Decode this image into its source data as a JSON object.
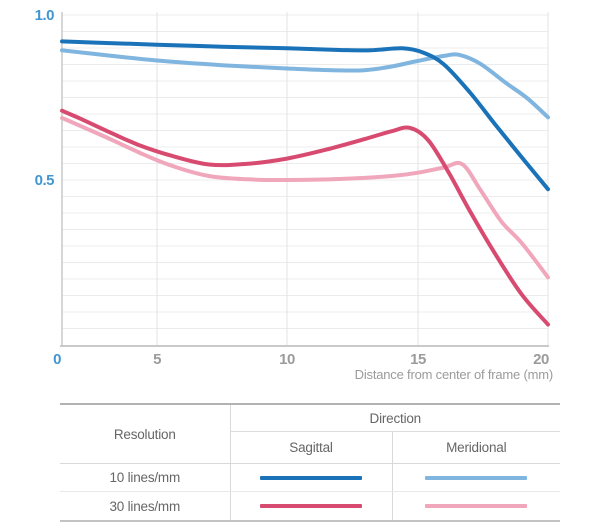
{
  "chart": {
    "y_tick_labels": [
      {
        "label": "1.0",
        "value": 1.0
      },
      {
        "label": "0.5",
        "value": 0.5
      }
    ],
    "origin_label": "0",
    "x_tick_labels": [
      {
        "label": "5",
        "value": 5
      },
      {
        "label": "10",
        "value": 10
      },
      {
        "label": "15",
        "value": 15
      },
      {
        "label": "20",
        "value": 20
      }
    ],
    "colors": {
      "tick_blue": "#4196d2",
      "tick_gray": "#9b9b9b",
      "grid_horizontal": "#ececec",
      "grid_vertical": "#e3e3e3",
      "axis": "#c9c9c9"
    }
  },
  "chart_data": {
    "type": "line",
    "title": "",
    "xlabel": "Distance from center of frame (mm)",
    "ylabel": "",
    "xlim": [
      0,
      20
    ],
    "ylim": [
      0,
      1.0
    ],
    "x_ticks": [
      0,
      5,
      10,
      15,
      20
    ],
    "y_ticks": [
      0,
      0.5,
      1.0
    ],
    "grid": true,
    "legend_position": "table-below",
    "series": [
      {
        "name": "10 lines/mm — Sagittal",
        "resolution": "10 lines/mm",
        "direction": "Sagittal",
        "color": "#1a73b8",
        "x": [
          0,
          2.5,
          5,
          7.5,
          10,
          12,
          13.2,
          14.4,
          15.2,
          16,
          17,
          18,
          19,
          20
        ],
        "y": [
          0.92,
          0.915,
          0.91,
          0.904,
          0.899,
          0.894,
          0.893,
          0.899,
          0.886,
          0.85,
          0.765,
          0.665,
          0.568,
          0.472
        ]
      },
      {
        "name": "10 lines/mm — Meridional",
        "resolution": "10 lines/mm",
        "direction": "Meridional",
        "color": "#7fb5de",
        "x": [
          0,
          2.5,
          5,
          7.5,
          10,
          12,
          13,
          14,
          15,
          16,
          16.6,
          17.4,
          18.4,
          19.2,
          20
        ],
        "y": [
          0.893,
          0.877,
          0.862,
          0.848,
          0.838,
          0.832,
          0.833,
          0.844,
          0.861,
          0.876,
          0.879,
          0.852,
          0.793,
          0.748,
          0.69
        ]
      },
      {
        "name": "30 lines/mm — Sagittal",
        "resolution": "30 lines/mm",
        "direction": "Sagittal",
        "color": "#d84b70",
        "x": [
          0,
          1,
          2.5,
          4,
          5.5,
          7,
          8.5,
          10,
          11.5,
          13,
          14,
          14.7,
          15.4,
          16.2,
          17,
          18,
          19,
          20
        ],
        "y": [
          0.71,
          0.685,
          0.645,
          0.607,
          0.575,
          0.547,
          0.549,
          0.565,
          0.592,
          0.625,
          0.648,
          0.658,
          0.62,
          0.52,
          0.405,
          0.272,
          0.152,
          0.062
        ]
      },
      {
        "name": "30 lines/mm — Meridional",
        "resolution": "30 lines/mm",
        "direction": "Meridional",
        "color": "#f1a7bb",
        "x": [
          0,
          1,
          2.5,
          4,
          5.5,
          7,
          8.5,
          10,
          12,
          14,
          15,
          16,
          16.7,
          17.4,
          18.2,
          19,
          20
        ],
        "y": [
          0.688,
          0.663,
          0.625,
          0.585,
          0.545,
          0.512,
          0.502,
          0.5,
          0.503,
          0.512,
          0.522,
          0.538,
          0.548,
          0.47,
          0.375,
          0.308,
          0.205
        ]
      }
    ]
  },
  "legend_table": {
    "resolution_header": "Resolution",
    "direction_header": "Direction",
    "columns": [
      "Sagittal",
      "Meridional"
    ],
    "rows": [
      {
        "label": "10 lines/mm",
        "sagittal_color": "#1a73b8",
        "meridional_color": "#7fb5de"
      },
      {
        "label": "30 lines/mm",
        "sagittal_color": "#d84b70",
        "meridional_color": "#f1a7bb"
      }
    ]
  }
}
